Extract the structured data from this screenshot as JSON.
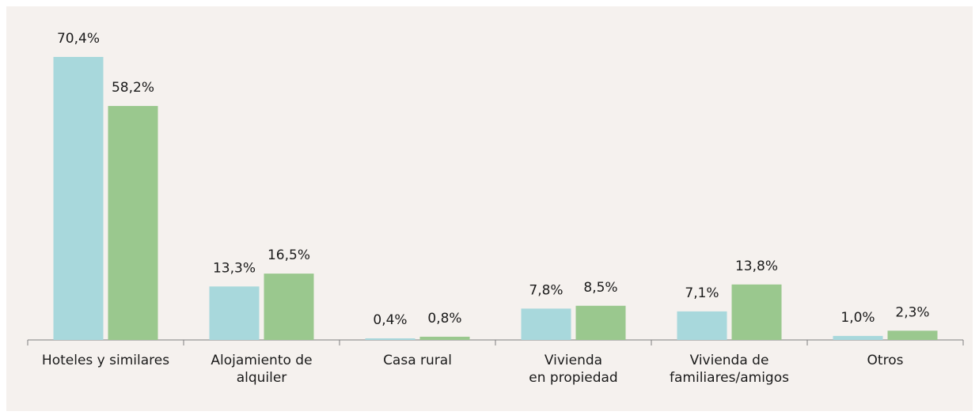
{
  "chart_data": {
    "type": "bar",
    "categories": [
      "Hoteles y similares",
      "Alojamiento de\nalquiler",
      "Casa rural",
      "Vivienda\nen propiedad",
      "Vivienda de\nfamiliares/amigos",
      "Otros"
    ],
    "series": [
      {
        "color": "#a8d8dc",
        "values": [
          70.4,
          13.3,
          0.4,
          7.8,
          7.1,
          1.0
        ],
        "value_labels": [
          "70,4%",
          "13,3%",
          "0,4%",
          "7,8%",
          "7,1%",
          "1,0%"
        ]
      },
      {
        "color": "#9ac88e",
        "values": [
          58.2,
          16.5,
          0.8,
          8.5,
          13.8,
          2.3
        ],
        "value_labels": [
          "58,2%",
          "16,5%",
          "0,8%",
          "8,5%",
          "13,8%",
          "2,3%"
        ]
      }
    ]
  }
}
